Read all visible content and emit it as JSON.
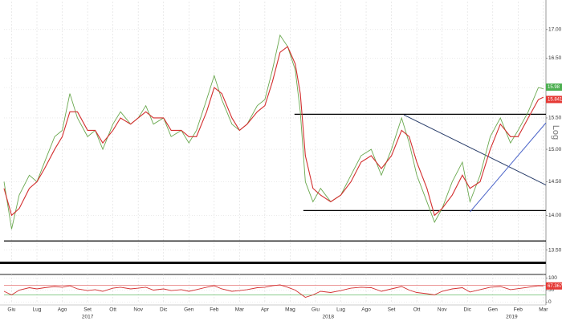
{
  "chart_data": [
    {
      "type": "line",
      "log_scale": true,
      "grid": true,
      "y_axis_label": "Log",
      "xlim": [
        -0.3,
        21.1
      ],
      "ylim": [
        13.35,
        17.46
      ],
      "xticks": [
        {
          "value": 0,
          "label": "Giu"
        },
        {
          "value": 1,
          "label": "Lug"
        },
        {
          "value": 2,
          "label": "Ago"
        },
        {
          "value": 3,
          "label": "Set"
        },
        {
          "value": 4,
          "label": "Ott"
        },
        {
          "value": 5,
          "label": "Nov"
        },
        {
          "value": 6,
          "label": "Dic"
        },
        {
          "value": 7,
          "label": "Gen"
        },
        {
          "value": 8,
          "label": "Feb"
        },
        {
          "value": 9,
          "label": "Mar"
        },
        {
          "value": 10,
          "label": "Apr"
        },
        {
          "value": 11,
          "label": "Mag"
        },
        {
          "value": 12,
          "label": "Giu"
        },
        {
          "value": 13,
          "label": "Lug"
        },
        {
          "value": 14,
          "label": "Ago"
        },
        {
          "value": 15,
          "label": "Set"
        },
        {
          "value": 16,
          "label": "Ott"
        },
        {
          "value": 17,
          "label": "Nov"
        },
        {
          "value": 18,
          "label": "Dic"
        },
        {
          "value": 19,
          "label": "Gen"
        },
        {
          "value": 20,
          "label": "Feb"
        },
        {
          "value": 21,
          "label": "Mar"
        }
      ],
      "year_labels": [
        {
          "value": 3,
          "label": "2017"
        },
        {
          "value": 12.5,
          "label": "2018"
        },
        {
          "value": 19.75,
          "label": "2019"
        }
      ],
      "yticks": [
        {
          "value": 13.5,
          "label": "13.50"
        },
        {
          "value": 14,
          "label": "14.00"
        },
        {
          "value": 14.5,
          "label": "14.50"
        },
        {
          "value": 15,
          "label": "15.00"
        },
        {
          "value": 15.5,
          "label": "15.50"
        },
        {
          "value": 16,
          "label": "16.00"
        },
        {
          "value": 16.5,
          "label": "16.50"
        },
        {
          "value": 17,
          "label": "17.00"
        }
      ],
      "series": [
        {
          "color": "#6aa84f",
          "x": [
            -0.3,
            0,
            0.3,
            0.7,
            1,
            1.3,
            1.7,
            2,
            2.3,
            2.6,
            3,
            3.3,
            3.6,
            4,
            4.3,
            4.7,
            5,
            5.3,
            5.6,
            6,
            6.3,
            6.7,
            7,
            7.3,
            7.7,
            8,
            8.3,
            8.7,
            9,
            9.3,
            9.7,
            10,
            10.3,
            10.6,
            10.9,
            11.2,
            11.4,
            11.6,
            11.9,
            12.2,
            12.6,
            13,
            13.4,
            13.8,
            14.2,
            14.6,
            15,
            15.4,
            15.7,
            16,
            16.4,
            16.7,
            17,
            17.4,
            17.8,
            18.1,
            18.5,
            18.9,
            19.3,
            19.7,
            20,
            20.4,
            20.8,
            21.0
          ],
          "values": [
            14.5,
            13.8,
            14.3,
            14.6,
            14.5,
            14.8,
            15.2,
            15.3,
            15.9,
            15.5,
            15.2,
            15.3,
            15.0,
            15.4,
            15.6,
            15.4,
            15.5,
            15.7,
            15.4,
            15.5,
            15.2,
            15.3,
            15.1,
            15.3,
            15.8,
            16.2,
            15.8,
            15.4,
            15.3,
            15.4,
            15.7,
            15.8,
            16.3,
            16.9,
            16.7,
            16.3,
            15.6,
            14.5,
            14.2,
            14.4,
            14.2,
            14.3,
            14.6,
            14.9,
            15.0,
            14.6,
            15.0,
            15.5,
            15.1,
            14.6,
            14.2,
            13.9,
            14.1,
            14.5,
            14.8,
            14.2,
            14.6,
            15.2,
            15.5,
            15.1,
            15.3,
            15.6,
            16.0,
            15.98
          ]
        },
        {
          "color": "#d32f2f",
          "x": [
            -0.3,
            0,
            0.3,
            0.7,
            1,
            1.3,
            1.7,
            2,
            2.3,
            2.6,
            3,
            3.3,
            3.6,
            4,
            4.3,
            4.7,
            5,
            5.3,
            5.6,
            6,
            6.3,
            6.7,
            7,
            7.3,
            7.7,
            8,
            8.3,
            8.7,
            9,
            9.3,
            9.7,
            10,
            10.3,
            10.6,
            10.9,
            11.2,
            11.4,
            11.6,
            11.9,
            12.2,
            12.6,
            13,
            13.4,
            13.8,
            14.2,
            14.6,
            15,
            15.4,
            15.7,
            16,
            16.4,
            16.7,
            17,
            17.4,
            17.8,
            18.1,
            18.5,
            18.9,
            19.3,
            19.7,
            20,
            20.4,
            20.8,
            21.0
          ],
          "values": [
            14.4,
            14.0,
            14.1,
            14.4,
            14.5,
            14.7,
            15.0,
            15.2,
            15.6,
            15.6,
            15.3,
            15.3,
            15.1,
            15.3,
            15.5,
            15.4,
            15.5,
            15.6,
            15.5,
            15.5,
            15.3,
            15.3,
            15.2,
            15.2,
            15.6,
            16.0,
            15.9,
            15.5,
            15.3,
            15.4,
            15.6,
            15.7,
            16.1,
            16.6,
            16.7,
            16.4,
            15.9,
            14.9,
            14.4,
            14.3,
            14.2,
            14.3,
            14.5,
            14.8,
            14.9,
            14.7,
            14.9,
            15.3,
            15.2,
            14.8,
            14.4,
            14.0,
            14.1,
            14.3,
            14.6,
            14.4,
            14.5,
            15.0,
            15.4,
            15.2,
            15.2,
            15.5,
            15.8,
            15.84
          ]
        }
      ],
      "reference_lines": [
        {
          "value": 15.56,
          "from": 11.17,
          "color": "#000000"
        },
        {
          "value": 14.07,
          "from": 11.52,
          "color": "#000000"
        },
        {
          "value": 13.63,
          "from": -0.3,
          "color": "#000000"
        }
      ],
      "trendlines": [
        {
          "x": [
            15.49,
            21.1
          ],
          "y": [
            15.55,
            14.45
          ],
          "color": "#2b3f6b"
        },
        {
          "x": [
            18.1,
            21.1
          ],
          "y": [
            14.05,
            15.42
          ],
          "color": "#4a63c8"
        }
      ],
      "last_values": [
        {
          "value": 15.98,
          "color": "#4caf50"
        },
        {
          "value": 15.8419,
          "color": "#e53935"
        }
      ]
    },
    {
      "type": "line",
      "grid": true,
      "xlim": [
        -0.3,
        21.1
      ],
      "ylim": [
        -5,
        105
      ],
      "yticks": [
        0,
        50,
        100
      ],
      "series": [
        {
          "color": "#d32f2f",
          "x": [
            -0.3,
            0,
            0.3,
            0.7,
            1,
            1.3,
            1.7,
            2,
            2.3,
            2.6,
            3,
            3.3,
            3.6,
            4,
            4.3,
            4.7,
            5,
            5.3,
            5.6,
            6,
            6.3,
            6.7,
            7,
            7.3,
            7.7,
            8,
            8.3,
            8.7,
            9,
            9.3,
            9.7,
            10,
            10.3,
            10.6,
            10.9,
            11.2,
            11.4,
            11.6,
            11.9,
            12.2,
            12.6,
            13,
            13.4,
            13.8,
            14.2,
            14.6,
            15,
            15.4,
            15.7,
            16,
            16.4,
            16.7,
            17,
            17.4,
            17.8,
            18.1,
            18.5,
            18.9,
            19.3,
            19.7,
            20,
            20.4,
            20.8,
            21.0
          ],
          "values": [
            45,
            30,
            50,
            60,
            55,
            60,
            65,
            62,
            68,
            55,
            48,
            52,
            45,
            58,
            62,
            55,
            58,
            62,
            50,
            55,
            48,
            52,
            45,
            52,
            62,
            68,
            55,
            45,
            48,
            52,
            60,
            62,
            68,
            72,
            62,
            50,
            35,
            20,
            30,
            45,
            40,
            48,
            58,
            62,
            60,
            45,
            55,
            65,
            50,
            40,
            35,
            30,
            45,
            55,
            60,
            42,
            52,
            62,
            65,
            52,
            56,
            62,
            68,
            67.3675
          ]
        }
      ],
      "reference_lines": [
        {
          "value": 70,
          "from": -0.3,
          "color": "#e57373"
        },
        {
          "value": 30,
          "from": -0.3,
          "color": "#66bb6a"
        }
      ],
      "last_values": [
        {
          "value": 67.3675,
          "color": "#e53935"
        }
      ]
    }
  ]
}
